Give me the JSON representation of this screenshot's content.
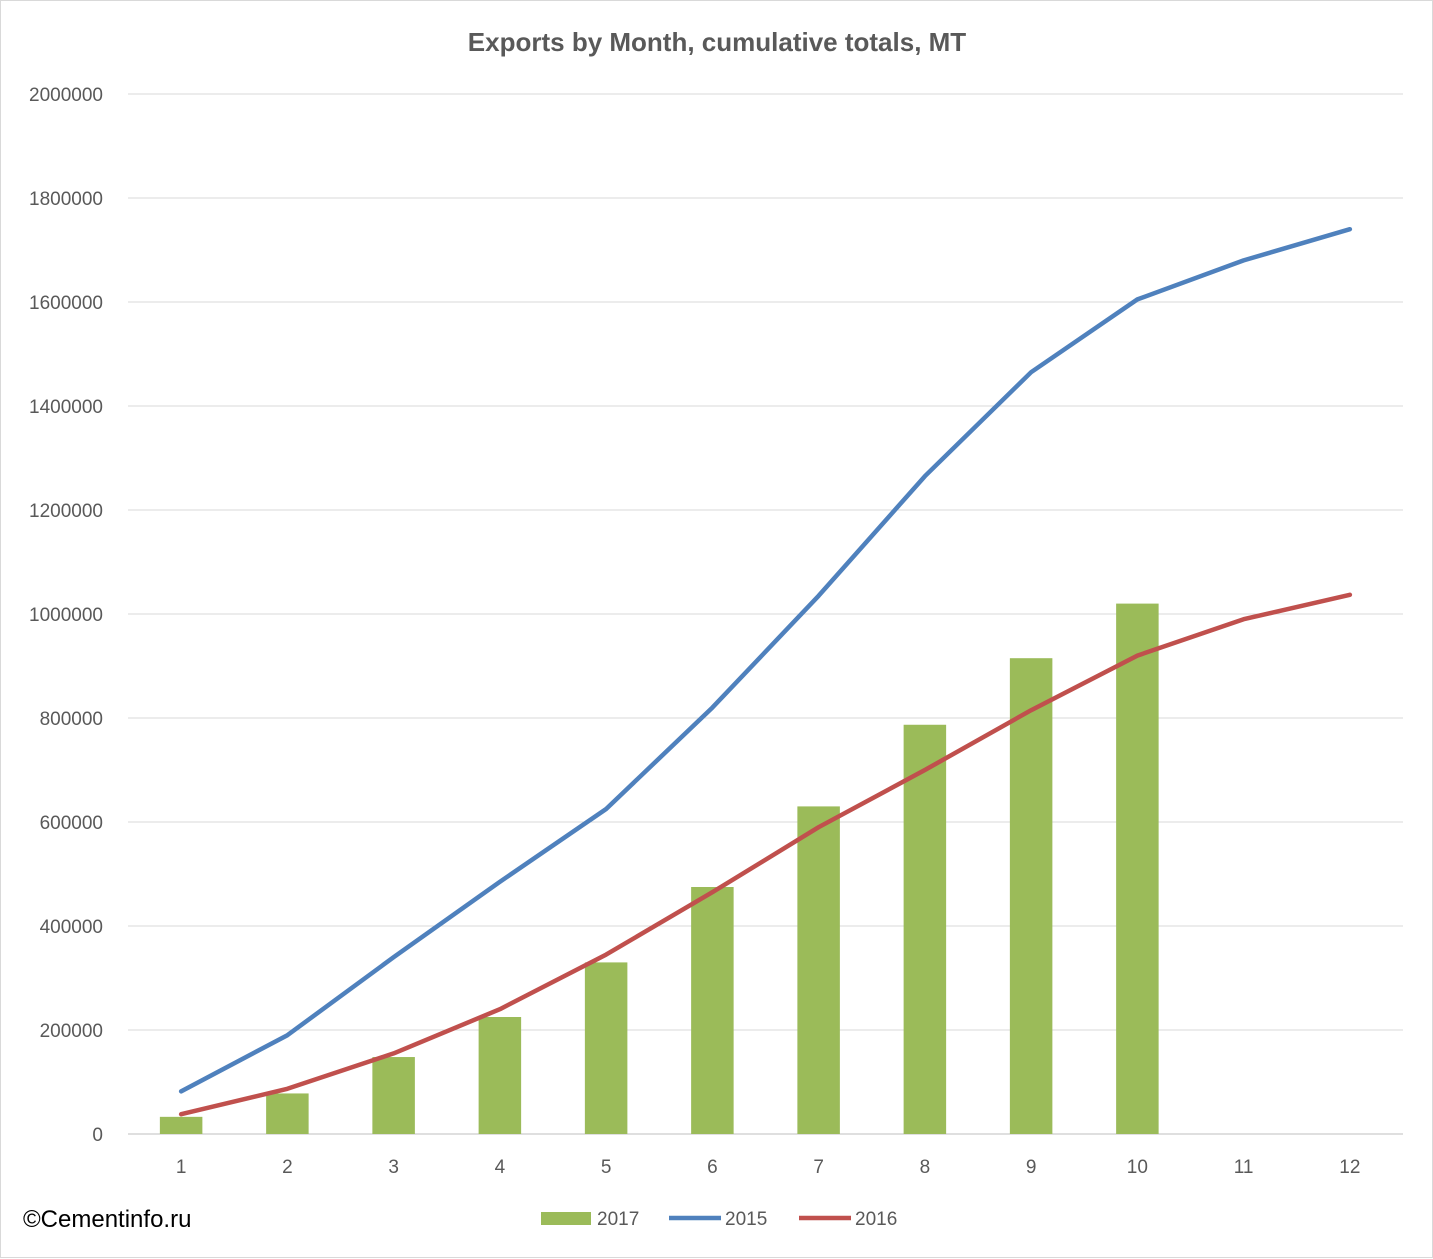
{
  "watermark": "©Cementinfo.ru",
  "chart_data": {
    "type": "bar",
    "title": "Exports by Month, cumulative totals, MT",
    "xlabel": "",
    "ylabel": "",
    "categories": [
      "1",
      "2",
      "3",
      "4",
      "5",
      "6",
      "7",
      "8",
      "9",
      "10",
      "11",
      "12"
    ],
    "ylim": [
      0,
      2000000
    ],
    "yticks": [
      "0",
      "200000",
      "400000",
      "600000",
      "800000",
      "1000000",
      "1200000",
      "1400000",
      "1600000",
      "1800000",
      "2000000"
    ],
    "grid": true,
    "legend": "bottom",
    "series": [
      {
        "name": "2017",
        "kind": "bar",
        "color": "#9bbb59",
        "values": [
          33000,
          78000,
          148000,
          225000,
          330000,
          475000,
          630000,
          787000,
          915000,
          1020000,
          null,
          null
        ]
      },
      {
        "name": "2015",
        "kind": "line",
        "color": "#4f81bd",
        "values": [
          82000,
          190000,
          340000,
          485000,
          625000,
          820000,
          1035000,
          1265000,
          1465000,
          1605000,
          1680000,
          1740000
        ]
      },
      {
        "name": "2016",
        "kind": "line",
        "color": "#c0504d",
        "values": [
          38000,
          87000,
          155000,
          240000,
          345000,
          465000,
          590000,
          700000,
          815000,
          920000,
          990000,
          1037000
        ]
      }
    ]
  }
}
